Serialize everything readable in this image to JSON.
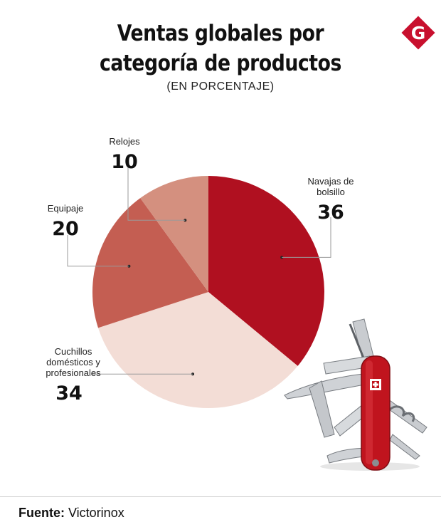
{
  "header": {
    "title_line1": "Ventas globales por",
    "title_line2": "categoría de productos",
    "subtitle": "(EN PORCENTAJE)",
    "logo_letter": "G"
  },
  "chart_data": {
    "type": "pie",
    "title": "Ventas globales por categoría de productos",
    "subtitle": "(EN PORCENTAJE)",
    "start_angle_deg": 0,
    "direction": "clockwise",
    "slices": [
      {
        "label_lines": [
          "Navajas de",
          "bolsillo"
        ],
        "value": 36,
        "color": "#b01020"
      },
      {
        "label_lines": [
          "Cuchillos",
          "domésticos y",
          "profesionales"
        ],
        "value": 34,
        "color": "#f3ddd6"
      },
      {
        "label_lines": [
          "Equipaje"
        ],
        "value": 20,
        "color": "#c45e52"
      },
      {
        "label_lines": [
          "Relojes"
        ],
        "value": 10,
        "color": "#d4907f"
      }
    ]
  },
  "footer": {
    "source_label": "Fuente:",
    "source_value": " Victorinox"
  },
  "colors": {
    "brand_red": "#c8102e",
    "knife_red": "#c0141e"
  },
  "decorations": {
    "knife_icon": "swiss-army-knife-icon"
  }
}
